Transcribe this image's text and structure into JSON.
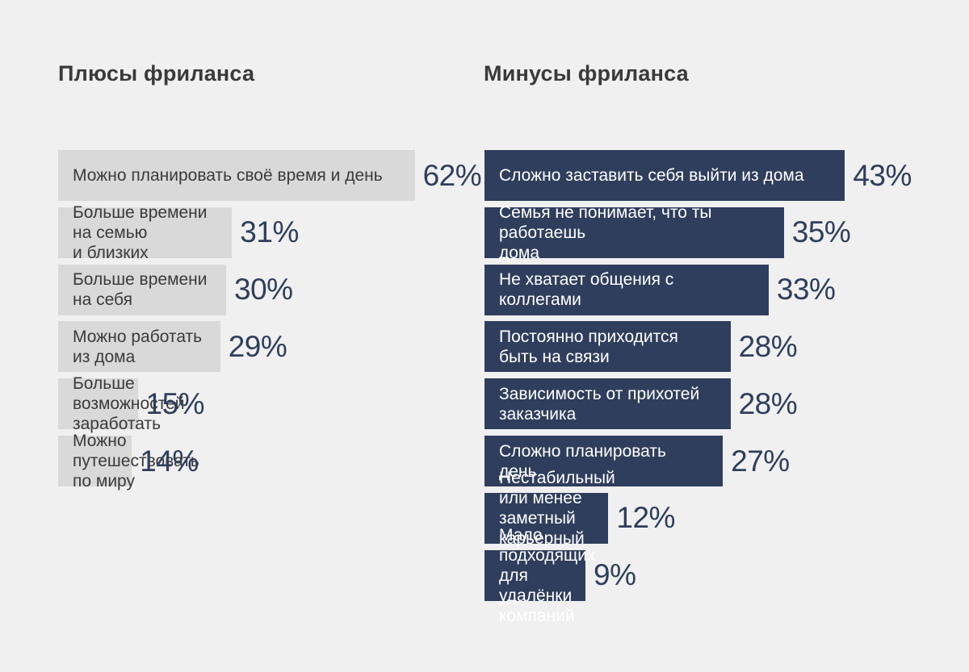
{
  "colors": {
    "pros_bar": "#d9d9d9",
    "cons_bar": "#2f3e5c",
    "value_text": "#2f3e5c",
    "background": "#f0f0f0"
  },
  "chart_data": [
    {
      "type": "bar",
      "orientation": "horizontal",
      "title": "Плюсы фриланса",
      "categories": [
        "Можно планировать своё время и день",
        "Больше времени на семью\nи близких",
        "Больше времени на себя",
        "Можно работать из дома",
        "Больше возможностей\nзаработать",
        "Можно путешествовать\nпо миру"
      ],
      "values": [
        62,
        31,
        30,
        29,
        15,
        14
      ],
      "value_labels": [
        "62%",
        "31%",
        "30%",
        "29%",
        "15%",
        "14%"
      ]
    },
    {
      "type": "bar",
      "orientation": "horizontal",
      "title": "Минусы фриланса",
      "categories": [
        "Сложно заставить себя выйти из дома",
        "Семья не понимает, что ты работаешь\nдома",
        "Не хватает общения с коллегами",
        "Постоянно приходится\nбыть на связи",
        "Зависимость от прихотей\nзаказчика",
        "Сложно планировать день",
        "Нестабильный или менее\nзаметный карьерный рост",
        "Мало подходящих\nдля удалёнки компаний"
      ],
      "values": [
        43,
        35,
        33,
        28,
        28,
        27,
        12,
        9
      ],
      "value_labels": [
        "43%",
        "35%",
        "33%",
        "28%",
        "28%",
        "27%",
        "12%",
        "9%"
      ]
    }
  ]
}
